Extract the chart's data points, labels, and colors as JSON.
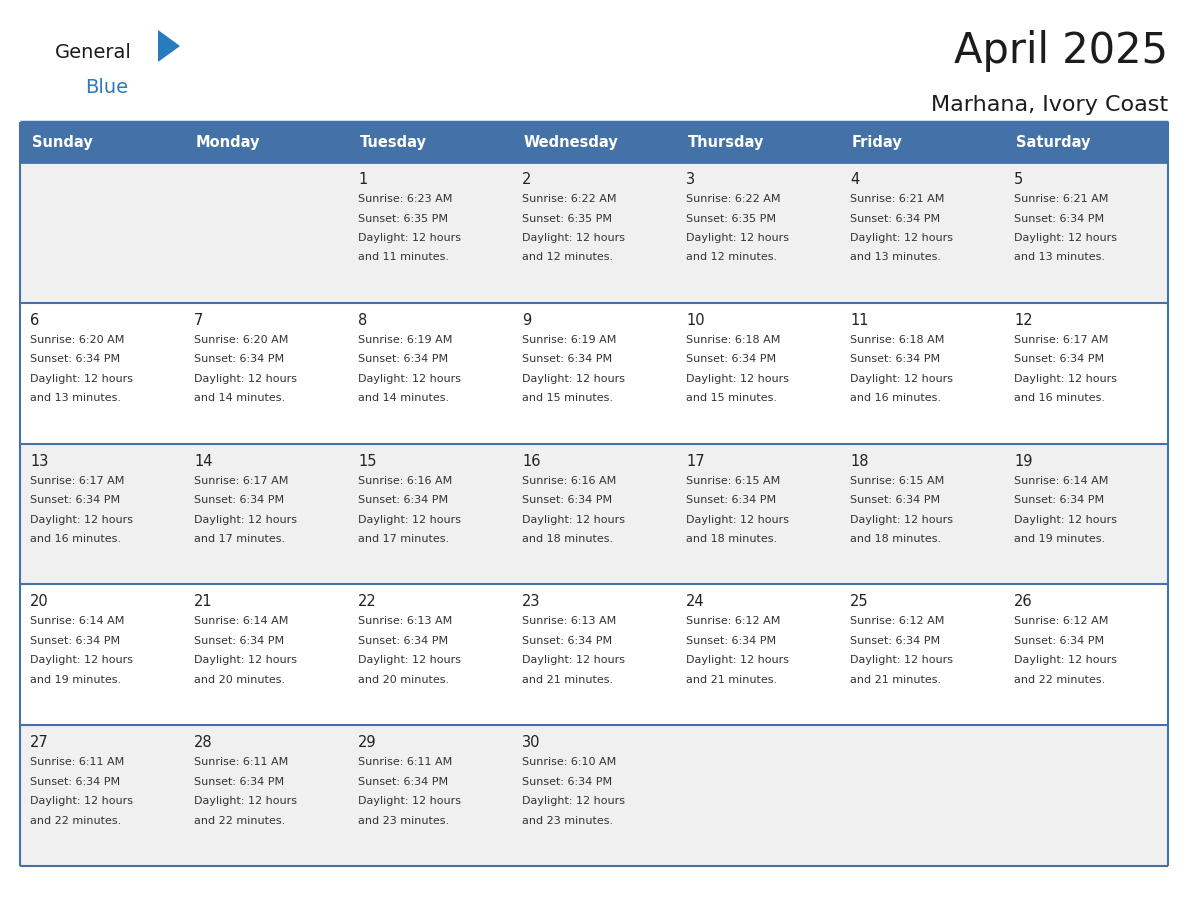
{
  "title": "April 2025",
  "subtitle": "Marhana, Ivory Coast",
  "days_of_week": [
    "Sunday",
    "Monday",
    "Tuesday",
    "Wednesday",
    "Thursday",
    "Friday",
    "Saturday"
  ],
  "header_bg": "#4472a8",
  "header_text": "#ffffff",
  "row_bg_odd": "#f0f0f0",
  "row_bg_even": "#ffffff",
  "border_color": "#4472a8",
  "text_color": "#333333",
  "day_num_color": "#222222",
  "blue_color": "#2a7abf",
  "calendar_data": [
    [
      null,
      null,
      {
        "day": 1,
        "sunrise": "6:23 AM",
        "sunset": "6:35 PM",
        "daylight": "12 hours",
        "daylight2": "and 11 minutes."
      },
      {
        "day": 2,
        "sunrise": "6:22 AM",
        "sunset": "6:35 PM",
        "daylight": "12 hours",
        "daylight2": "and 12 minutes."
      },
      {
        "day": 3,
        "sunrise": "6:22 AM",
        "sunset": "6:35 PM",
        "daylight": "12 hours",
        "daylight2": "and 12 minutes."
      },
      {
        "day": 4,
        "sunrise": "6:21 AM",
        "sunset": "6:34 PM",
        "daylight": "12 hours",
        "daylight2": "and 13 minutes."
      },
      {
        "day": 5,
        "sunrise": "6:21 AM",
        "sunset": "6:34 PM",
        "daylight": "12 hours",
        "daylight2": "and 13 minutes."
      }
    ],
    [
      {
        "day": 6,
        "sunrise": "6:20 AM",
        "sunset": "6:34 PM",
        "daylight": "12 hours",
        "daylight2": "and 13 minutes."
      },
      {
        "day": 7,
        "sunrise": "6:20 AM",
        "sunset": "6:34 PM",
        "daylight": "12 hours",
        "daylight2": "and 14 minutes."
      },
      {
        "day": 8,
        "sunrise": "6:19 AM",
        "sunset": "6:34 PM",
        "daylight": "12 hours",
        "daylight2": "and 14 minutes."
      },
      {
        "day": 9,
        "sunrise": "6:19 AM",
        "sunset": "6:34 PM",
        "daylight": "12 hours",
        "daylight2": "and 15 minutes."
      },
      {
        "day": 10,
        "sunrise": "6:18 AM",
        "sunset": "6:34 PM",
        "daylight": "12 hours",
        "daylight2": "and 15 minutes."
      },
      {
        "day": 11,
        "sunrise": "6:18 AM",
        "sunset": "6:34 PM",
        "daylight": "12 hours",
        "daylight2": "and 16 minutes."
      },
      {
        "day": 12,
        "sunrise": "6:17 AM",
        "sunset": "6:34 PM",
        "daylight": "12 hours",
        "daylight2": "and 16 minutes."
      }
    ],
    [
      {
        "day": 13,
        "sunrise": "6:17 AM",
        "sunset": "6:34 PM",
        "daylight": "12 hours",
        "daylight2": "and 16 minutes."
      },
      {
        "day": 14,
        "sunrise": "6:17 AM",
        "sunset": "6:34 PM",
        "daylight": "12 hours",
        "daylight2": "and 17 minutes."
      },
      {
        "day": 15,
        "sunrise": "6:16 AM",
        "sunset": "6:34 PM",
        "daylight": "12 hours",
        "daylight2": "and 17 minutes."
      },
      {
        "day": 16,
        "sunrise": "6:16 AM",
        "sunset": "6:34 PM",
        "daylight": "12 hours",
        "daylight2": "and 18 minutes."
      },
      {
        "day": 17,
        "sunrise": "6:15 AM",
        "sunset": "6:34 PM",
        "daylight": "12 hours",
        "daylight2": "and 18 minutes."
      },
      {
        "day": 18,
        "sunrise": "6:15 AM",
        "sunset": "6:34 PM",
        "daylight": "12 hours",
        "daylight2": "and 18 minutes."
      },
      {
        "day": 19,
        "sunrise": "6:14 AM",
        "sunset": "6:34 PM",
        "daylight": "12 hours",
        "daylight2": "and 19 minutes."
      }
    ],
    [
      {
        "day": 20,
        "sunrise": "6:14 AM",
        "sunset": "6:34 PM",
        "daylight": "12 hours",
        "daylight2": "and 19 minutes."
      },
      {
        "day": 21,
        "sunrise": "6:14 AM",
        "sunset": "6:34 PM",
        "daylight": "12 hours",
        "daylight2": "and 20 minutes."
      },
      {
        "day": 22,
        "sunrise": "6:13 AM",
        "sunset": "6:34 PM",
        "daylight": "12 hours",
        "daylight2": "and 20 minutes."
      },
      {
        "day": 23,
        "sunrise": "6:13 AM",
        "sunset": "6:34 PM",
        "daylight": "12 hours",
        "daylight2": "and 21 minutes."
      },
      {
        "day": 24,
        "sunrise": "6:12 AM",
        "sunset": "6:34 PM",
        "daylight": "12 hours",
        "daylight2": "and 21 minutes."
      },
      {
        "day": 25,
        "sunrise": "6:12 AM",
        "sunset": "6:34 PM",
        "daylight": "12 hours",
        "daylight2": "and 21 minutes."
      },
      {
        "day": 26,
        "sunrise": "6:12 AM",
        "sunset": "6:34 PM",
        "daylight": "12 hours",
        "daylight2": "and 22 minutes."
      }
    ],
    [
      {
        "day": 27,
        "sunrise": "6:11 AM",
        "sunset": "6:34 PM",
        "daylight": "12 hours",
        "daylight2": "and 22 minutes."
      },
      {
        "day": 28,
        "sunrise": "6:11 AM",
        "sunset": "6:34 PM",
        "daylight": "12 hours",
        "daylight2": "and 22 minutes."
      },
      {
        "day": 29,
        "sunrise": "6:11 AM",
        "sunset": "6:34 PM",
        "daylight": "12 hours",
        "daylight2": "and 23 minutes."
      },
      {
        "day": 30,
        "sunrise": "6:10 AM",
        "sunset": "6:34 PM",
        "daylight": "12 hours",
        "daylight2": "and 23 minutes."
      },
      null,
      null,
      null
    ]
  ]
}
